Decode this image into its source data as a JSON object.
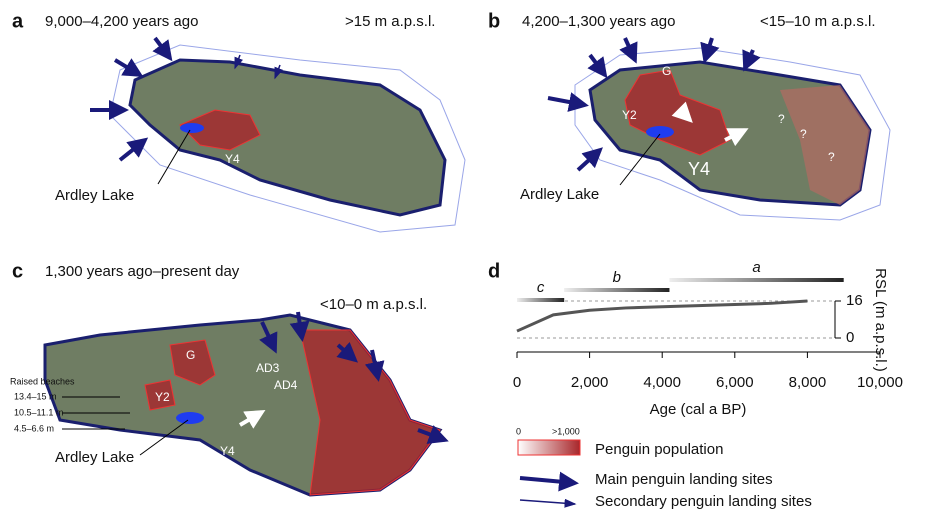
{
  "panels": [
    {
      "letter": "a",
      "period": "9,000–4,200 years ago",
      "elevation": ">15 m a.p.s.l.",
      "lake": "Ardley Lake",
      "sites": [
        "Y4"
      ]
    },
    {
      "letter": "b",
      "period": "4,200–1,300 years ago",
      "elevation": "<15–10 m a.p.s.l.",
      "lake": "Ardley Lake",
      "sites": [
        "G",
        "Y2",
        "Y4"
      ],
      "unknown": "?"
    },
    {
      "letter": "c",
      "period": "1,300 years ago–present day",
      "elevation": "<10–0 m a.p.s.l.",
      "lake": "Ardley Lake",
      "sites": [
        "G",
        "Y2",
        "Y4",
        "AD3",
        "AD4"
      ],
      "raised_beaches": {
        "title": "Raised beaches",
        "levels": [
          "13.4–15 m",
          "10.5–11.1 m",
          "4.5–6.6 m"
        ]
      }
    }
  ],
  "chart_data": {
    "type": "line",
    "letter": "d",
    "xlabel": "Age (cal a BP)",
    "ylabel": "RSL (m a.p.s.l.)",
    "x": [
      0,
      1000,
      2000,
      3000,
      4000,
      5000,
      6000,
      7000,
      8000
    ],
    "series": [
      {
        "color": "#555555",
        "values": [
          3,
          10,
          12,
          13,
          13.5,
          14,
          14.5,
          15,
          16
        ]
      }
    ],
    "periods": [
      {
        "label": "c",
        "start": 0,
        "end": 1300
      },
      {
        "label": "b",
        "start": 1300,
        "end": 4200
      },
      {
        "label": "a",
        "start": 4200,
        "end": 9000
      }
    ],
    "xlim": [
      0,
      10000
    ],
    "xticks": [
      0,
      {
        "value": 2000,
        "label": "2,000"
      },
      {
        "value": 4000,
        "label": "4,000"
      },
      {
        "value": 6000,
        "label": "6,000"
      },
      {
        "value": 8000,
        "label": "8,000"
      },
      {
        "value": 10000,
        "label": "10,000"
      }
    ],
    "ylim": [
      0,
      16
    ],
    "yticks": [
      0,
      16
    ],
    "grid": true
  },
  "legend": {
    "scale_min": "0",
    "scale_max": ">1,000",
    "population": "Penguin population",
    "main_sites": "Main penguin landing sites",
    "secondary_sites": "Secondary penguin landing sites"
  }
}
